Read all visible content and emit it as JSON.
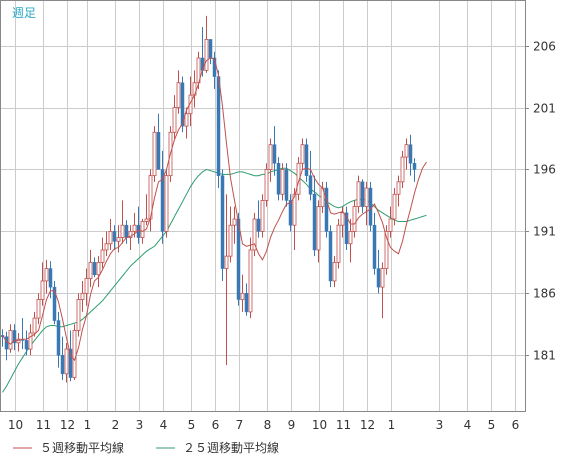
{
  "period_label": "週足",
  "legend": [
    {
      "label": "５週移動平均線",
      "color": "#c0504d"
    },
    {
      "label": "２５週移動平均線",
      "color": "#2e9e6e"
    }
  ],
  "colors": {
    "up": "#c0504d",
    "down": "#3a78b4",
    "background": "#ffffff",
    "grid": "#cccccc",
    "frame": "#888888",
    "period_label": "#2aa8c8"
  },
  "chart_data": {
    "type": "candlestick",
    "title": "",
    "period": "weekly",
    "y_ticks": [
      181,
      186,
      191,
      196,
      201,
      206
    ],
    "ylim": [
      176.5,
      209.6
    ],
    "x_tick_labels": [
      "10",
      "11",
      "12",
      "1",
      "2",
      "3",
      "4",
      "5",
      "6",
      "7",
      "8",
      "9",
      "10",
      "11",
      "12",
      "1",
      "3",
      "4",
      "5",
      "6"
    ],
    "x_tick_positions": [
      3,
      10,
      16,
      21,
      28,
      34,
      40,
      47,
      53,
      59,
      66,
      72,
      79,
      85,
      91,
      97,
      109,
      116,
      122,
      128
    ],
    "grid": true,
    "legend_position": "bottom",
    "candles": [
      [
        182.6,
        183.1,
        181.7,
        182.5
      ],
      [
        182.5,
        182.9,
        180.6,
        181.5
      ],
      [
        181.5,
        183.5,
        181.2,
        183.0
      ],
      [
        183.0,
        183.5,
        181.4,
        182.0
      ],
      [
        182.0,
        182.8,
        181.3,
        182.3
      ],
      [
        182.3,
        184.0,
        181.5,
        182.2
      ],
      [
        182.2,
        183.0,
        181.0,
        181.5
      ],
      [
        181.5,
        183.5,
        181.0,
        182.8
      ],
      [
        182.8,
        184.5,
        182.5,
        184.0
      ],
      [
        184.0,
        186.0,
        183.5,
        185.5
      ],
      [
        185.5,
        188.5,
        185.0,
        187.0
      ],
      [
        187.0,
        188.7,
        186.0,
        188.0
      ],
      [
        188.0,
        188.6,
        185.6,
        186.5
      ],
      [
        186.5,
        187.0,
        183.5,
        183.8
      ],
      [
        183.8,
        184.5,
        180.0,
        181.0
      ],
      [
        181.0,
        182.5,
        179.0,
        179.5
      ],
      [
        179.5,
        182.0,
        178.8,
        181.5
      ],
      [
        181.5,
        183.0,
        178.9,
        179.2
      ],
      [
        179.2,
        183.5,
        179.0,
        183.0
      ],
      [
        183.0,
        186.0,
        182.5,
        185.5
      ],
      [
        185.5,
        187.0,
        184.5,
        186.0
      ],
      [
        186.0,
        188.0,
        185.0,
        187.2
      ],
      [
        187.2,
        189.5,
        186.5,
        188.5
      ],
      [
        188.5,
        188.9,
        187.3,
        187.5
      ],
      [
        187.5,
        189.0,
        186.5,
        188.5
      ],
      [
        188.5,
        190.5,
        188.0,
        189.5
      ],
      [
        189.5,
        191.0,
        189.0,
        190.0
      ],
      [
        190.0,
        192.0,
        189.5,
        191.0
      ],
      [
        191.0,
        191.5,
        189.5,
        190.2
      ],
      [
        190.2,
        191.5,
        189.3,
        190.5
      ],
      [
        190.5,
        193.5,
        190.0,
        191.5
      ],
      [
        191.5,
        191.9,
        190.0,
        190.5
      ],
      [
        190.5,
        191.5,
        189.5,
        191.0
      ],
      [
        191.0,
        192.5,
        190.5,
        191.5
      ],
      [
        191.5,
        193.0,
        190.0,
        190.5
      ],
      [
        190.5,
        192.0,
        190.0,
        191.8
      ],
      [
        191.8,
        194.0,
        191.5,
        192.0
      ],
      [
        192.0,
        196.0,
        191.0,
        195.5
      ],
      [
        195.5,
        199.5,
        195.0,
        199.0
      ],
      [
        199.0,
        200.5,
        196.0,
        196.0
      ],
      [
        196.0,
        197.5,
        190.0,
        191.0
      ],
      [
        191.0,
        196.0,
        190.5,
        195.5
      ],
      [
        195.5,
        199.5,
        195.0,
        199.0
      ],
      [
        199.0,
        202.0,
        198.5,
        201.0
      ],
      [
        201.0,
        204.0,
        200.5,
        203.0
      ],
      [
        203.0,
        203.5,
        199.0,
        199.5
      ],
      [
        199.5,
        201.0,
        198.5,
        200.5
      ],
      [
        200.5,
        203.5,
        199.5,
        202.0
      ],
      [
        202.0,
        204.0,
        201.0,
        203.0
      ],
      [
        203.0,
        205.5,
        202.5,
        205.0
      ],
      [
        205.0,
        207.5,
        203.5,
        204.0
      ],
      [
        204.0,
        208.4,
        203.8,
        206.5
      ],
      [
        206.5,
        206.5,
        204.5,
        205.0
      ],
      [
        205.0,
        205.5,
        202.5,
        203.5
      ],
      [
        203.5,
        204.0,
        194.5,
        195.5
      ],
      [
        195.5,
        196.0,
        187.0,
        188.0
      ],
      [
        188.0,
        194.0,
        180.2,
        189.0
      ],
      [
        189.0,
        193.0,
        188.5,
        191.5
      ],
      [
        191.5,
        193.0,
        190.0,
        192.0
      ],
      [
        192.0,
        192.5,
        185.0,
        185.5
      ],
      [
        185.5,
        187.5,
        184.5,
        186.0
      ],
      [
        186.0,
        186.8,
        184.2,
        184.5
      ],
      [
        184.5,
        190.5,
        184.0,
        189.5
      ],
      [
        189.5,
        192.5,
        189.0,
        192.0
      ],
      [
        192.0,
        193.5,
        190.5,
        191.0
      ],
      [
        191.0,
        194.0,
        190.5,
        193.5
      ],
      [
        193.5,
        196.5,
        193.0,
        196.0
      ],
      [
        196.0,
        198.5,
        195.0,
        198.0
      ],
      [
        198.0,
        199.5,
        195.5,
        196.5
      ],
      [
        196.5,
        197.0,
        193.5,
        194.0
      ],
      [
        194.0,
        196.5,
        193.5,
        196.0
      ],
      [
        196.0,
        196.5,
        193.0,
        193.5
      ],
      [
        193.5,
        194.0,
        191.0,
        191.5
      ],
      [
        191.5,
        194.5,
        189.5,
        194.0
      ],
      [
        194.0,
        197.0,
        193.5,
        196.5
      ],
      [
        196.5,
        198.5,
        196.0,
        198.0
      ],
      [
        198.0,
        198.5,
        195.0,
        195.5
      ],
      [
        195.5,
        197.5,
        193.5,
        194.0
      ],
      [
        194.0,
        195.5,
        189.0,
        189.5
      ],
      [
        189.5,
        193.5,
        188.5,
        193.0
      ],
      [
        193.0,
        195.0,
        192.5,
        194.5
      ],
      [
        194.5,
        195.0,
        190.5,
        191.0
      ],
      [
        191.0,
        191.5,
        186.5,
        187.0
      ],
      [
        187.0,
        189.0,
        186.5,
        188.5
      ],
      [
        188.5,
        192.0,
        188.0,
        191.5
      ],
      [
        191.5,
        193.0,
        190.5,
        192.5
      ],
      [
        192.5,
        193.0,
        189.5,
        190.0
      ],
      [
        190.0,
        192.0,
        188.5,
        191.0
      ],
      [
        191.0,
        193.5,
        190.5,
        193.0
      ],
      [
        193.0,
        195.5,
        192.5,
        195.0
      ],
      [
        195.0,
        195.2,
        192.5,
        193.0
      ],
      [
        193.0,
        195.0,
        191.5,
        194.5
      ],
      [
        194.5,
        195.0,
        191.0,
        191.5
      ],
      [
        191.5,
        192.5,
        187.5,
        188.0
      ],
      [
        188.0,
        189.5,
        186.0,
        186.5
      ],
      [
        186.5,
        188.5,
        184.0,
        188.0
      ],
      [
        188.0,
        191.5,
        187.5,
        191.0
      ],
      [
        191.0,
        193.0,
        190.5,
        192.0
      ],
      [
        192.0,
        194.5,
        191.5,
        194.0
      ],
      [
        194.0,
        195.5,
        193.0,
        195.0
      ],
      [
        195.0,
        197.5,
        194.5,
        197.0
      ],
      [
        197.0,
        198.5,
        196.0,
        198.0
      ],
      [
        198.0,
        198.8,
        195.5,
        196.5
      ],
      [
        196.5,
        196.9,
        195.0,
        196.0
      ]
    ],
    "ma5": [
      182.6,
      182.1,
      181.9,
      182.2,
      182.2,
      182.3,
      182.3,
      182.5,
      182.7,
      183.0,
      184.2,
      185.5,
      186.2,
      186.2,
      185.3,
      183.9,
      182.4,
      181.0,
      180.6,
      181.6,
      183.1,
      184.2,
      185.9,
      187.0,
      187.3,
      187.9,
      188.6,
      189.2,
      189.6,
      189.7,
      190.1,
      190.5,
      190.6,
      190.8,
      191.1,
      191.0,
      191.2,
      192.1,
      193.7,
      195.0,
      195.2,
      196.0,
      197.3,
      198.4,
      199.2,
      199.7,
      200.8,
      201.4,
      202.0,
      202.9,
      204.1,
      204.8,
      205.0,
      204.9,
      203.6,
      201.1,
      198.1,
      195.3,
      193.5,
      191.7,
      190.0,
      189.8,
      189.9,
      190.0,
      189.2,
      188.7,
      189.4,
      190.5,
      191.3,
      191.9,
      192.6,
      193.2,
      193.3,
      193.8,
      195.0,
      196.0,
      196.1,
      196.0,
      195.3,
      194.8,
      194.5,
      193.6,
      192.5,
      192.4,
      192.5,
      192.6,
      192.2,
      191.6,
      191.6,
      192.1,
      192.4,
      192.6,
      192.8,
      193.2,
      192.5,
      191.7,
      190.5,
      189.7,
      189.4,
      189.2,
      190.2,
      191.6,
      192.8,
      194.1,
      195.2,
      196.1,
      196.6
    ],
    "ma25": [
      178.0,
      178.5,
      179.1,
      179.7,
      180.3,
      180.8,
      181.3,
      181.8,
      182.2,
      182.6,
      183.0,
      183.3,
      183.4,
      183.4,
      183.3,
      183.3,
      183.4,
      183.5,
      183.6,
      183.7,
      183.9,
      184.2,
      184.5,
      184.8,
      185.1,
      185.4,
      185.8,
      186.2,
      186.6,
      187.0,
      187.4,
      187.8,
      188.2,
      188.5,
      188.8,
      189.1,
      189.4,
      189.6,
      189.8,
      190.2,
      190.6,
      191.0,
      191.6,
      192.2,
      192.8,
      193.4,
      194.0,
      194.6,
      195.1,
      195.5,
      195.8,
      196.0,
      195.9,
      195.8,
      195.7,
      195.6,
      195.6,
      195.6,
      195.7,
      195.8,
      195.8,
      195.7,
      195.6,
      195.5,
      195.5,
      195.6,
      195.6,
      195.8,
      195.9,
      196.0,
      196.1,
      196.1,
      195.9,
      195.7,
      195.4,
      195.1,
      194.8,
      194.4,
      194.2,
      193.9,
      193.7,
      193.4,
      193.2,
      193.0,
      192.9,
      193.0,
      193.2,
      193.4,
      193.5,
      193.6,
      193.6,
      193.5,
      193.3,
      193.0,
      192.7,
      192.5,
      192.3,
      192.1,
      191.9,
      191.8,
      191.8,
      191.8,
      191.9,
      192.0,
      192.1,
      192.2,
      192.3
    ]
  }
}
